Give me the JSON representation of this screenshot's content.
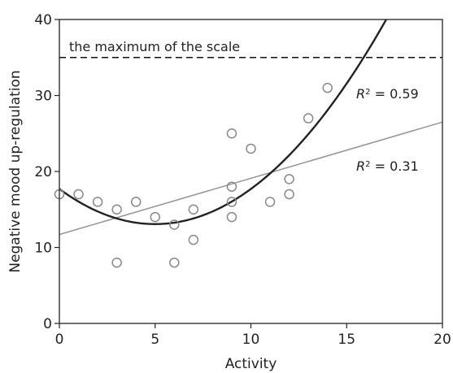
{
  "chart_data": {
    "type": "scatter",
    "title": "",
    "xlabel": "Activity",
    "ylabel": "Negative mood up-regulation",
    "xlim": [
      0,
      20
    ],
    "ylim": [
      0,
      40
    ],
    "x_ticks": [
      "0",
      "5",
      "10",
      "15",
      "20"
    ],
    "y_ticks": [
      "0",
      "10",
      "20",
      "30",
      "40"
    ],
    "grid": false,
    "legend": "none",
    "points": [
      {
        "x": 0,
        "y": 17
      },
      {
        "x": 1,
        "y": 17
      },
      {
        "x": 2,
        "y": 16
      },
      {
        "x": 3,
        "y": 15
      },
      {
        "x": 3,
        "y": 8
      },
      {
        "x": 4,
        "y": 16
      },
      {
        "x": 5,
        "y": 14
      },
      {
        "x": 6,
        "y": 13
      },
      {
        "x": 6,
        "y": 8
      },
      {
        "x": 7,
        "y": 15
      },
      {
        "x": 7,
        "y": 11
      },
      {
        "x": 9,
        "y": 25
      },
      {
        "x": 9,
        "y": 18
      },
      {
        "x": 9,
        "y": 16
      },
      {
        "x": 9,
        "y": 14
      },
      {
        "x": 10,
        "y": 23
      },
      {
        "x": 11,
        "y": 16
      },
      {
        "x": 12,
        "y": 19
      },
      {
        "x": 12,
        "y": 17
      },
      {
        "x": 13,
        "y": 27
      },
      {
        "x": 14,
        "y": 31
      }
    ],
    "fits": {
      "linear": {
        "label_prefix": "R",
        "label_sup": "2",
        "label_suffix": " = 0.31",
        "intercept": 11.7,
        "slope": 0.74,
        "color": "#999999"
      },
      "quadratic": {
        "label_prefix": "R",
        "label_sup": "2",
        "label_suffix": " = 0.59",
        "a": 0.185,
        "b": -1.85,
        "c": 17.7,
        "color": "#222222"
      }
    },
    "reference_line": {
      "value": 35,
      "label": "the maximum of the scale",
      "style": "dashed"
    }
  }
}
